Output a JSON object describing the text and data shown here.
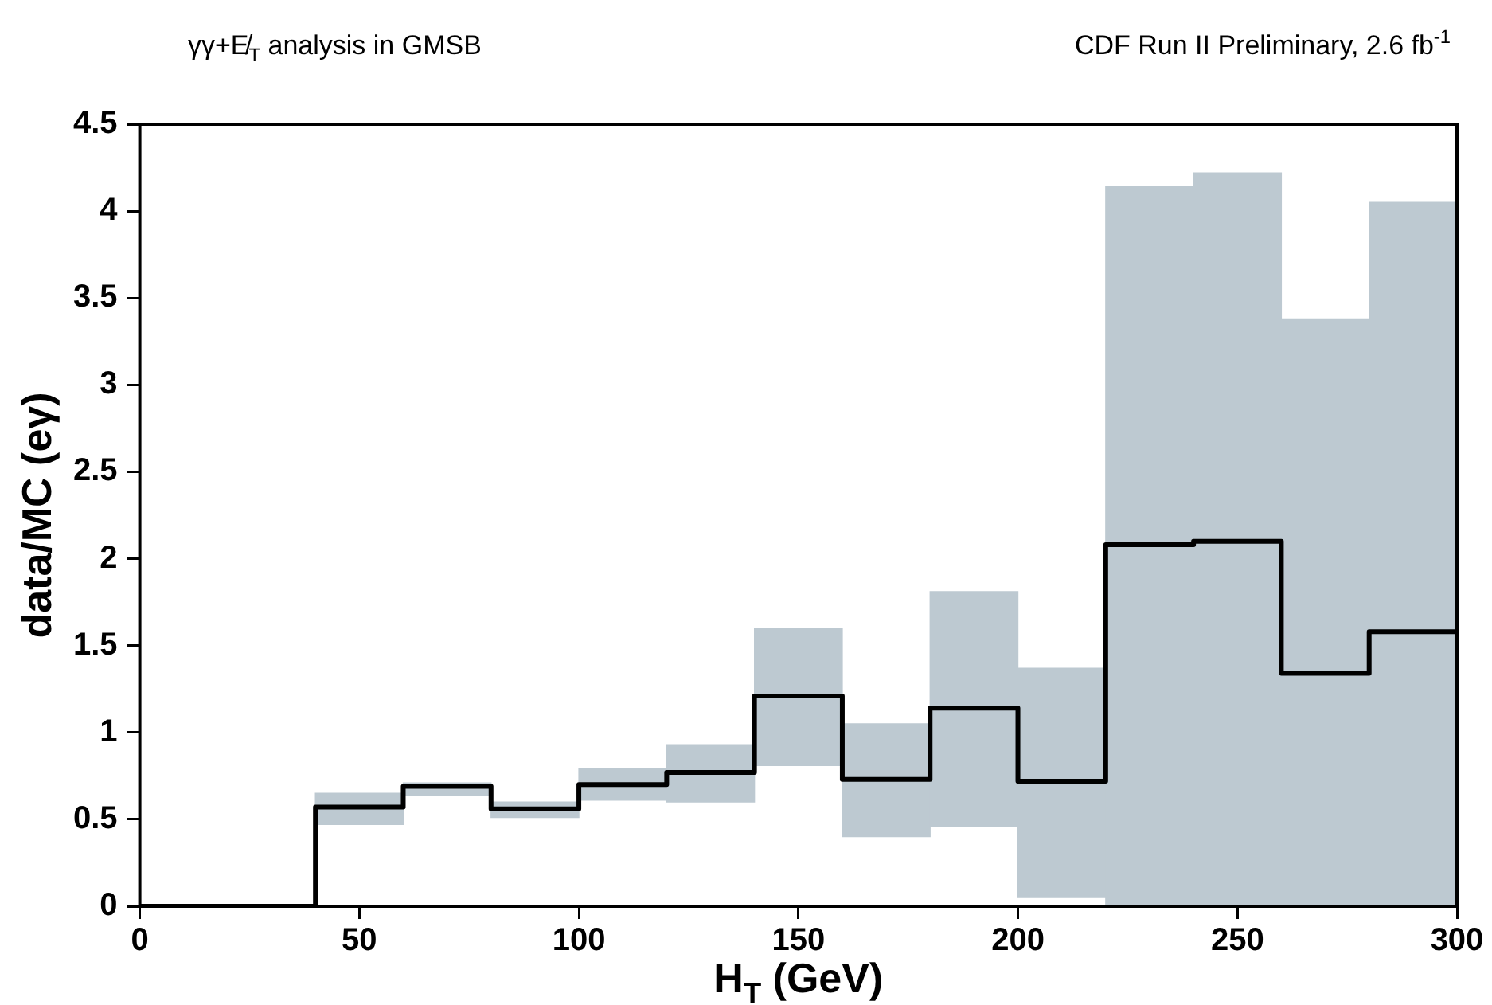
{
  "chart_data": {
    "type": "bar",
    "title": "γγ+E̸$_{T}$ analysis in GMSB",
    "annotations": [
      "CDF Run II Preliminary, 2.6 fb$^{-1}$"
    ],
    "xlabel": "H$_{T}$ (GeV)",
    "ylabel": "data/MC (eγ)",
    "series": [
      {
        "color": "#bdc9d1",
        "x": [
          50,
          70,
          90,
          110,
          130,
          150,
          170,
          190,
          210,
          230,
          250,
          270,
          290
        ],
        "base": [
          0.47,
          0.64,
          0.51,
          0.61,
          0.6,
          0.81,
          0.4,
          0.46,
          0.05,
          0,
          0,
          0,
          0
        ],
        "values": [
          0.18,
          0.07,
          0.09,
          0.18,
          0.33,
          0.79,
          0.65,
          1.35,
          1.32,
          4.14,
          4.22,
          3.38,
          4.05
        ]
      },
      {
        "type": "step",
        "color": "#000000",
        "x": [
          0,
          20,
          40,
          60,
          80,
          100,
          120,
          140,
          160,
          180,
          200,
          220,
          240,
          260,
          280,
          300
        ],
        "values": [
          0,
          0,
          0.57,
          0.69,
          0.56,
          0.7,
          0.77,
          1.21,
          0.73,
          1.14,
          0.72,
          2.08,
          2.1,
          1.34,
          1.58,
          1.58
        ]
      }
    ],
    "xlim": [
      0,
      300
    ],
    "xticks": [
      0,
      50,
      100,
      150,
      200,
      250,
      300
    ],
    "ylim": [
      0,
      4.5
    ],
    "yticks": [
      0,
      0.5,
      1,
      1.5,
      2,
      2.5,
      3,
      3.5,
      4,
      4.5
    ]
  }
}
